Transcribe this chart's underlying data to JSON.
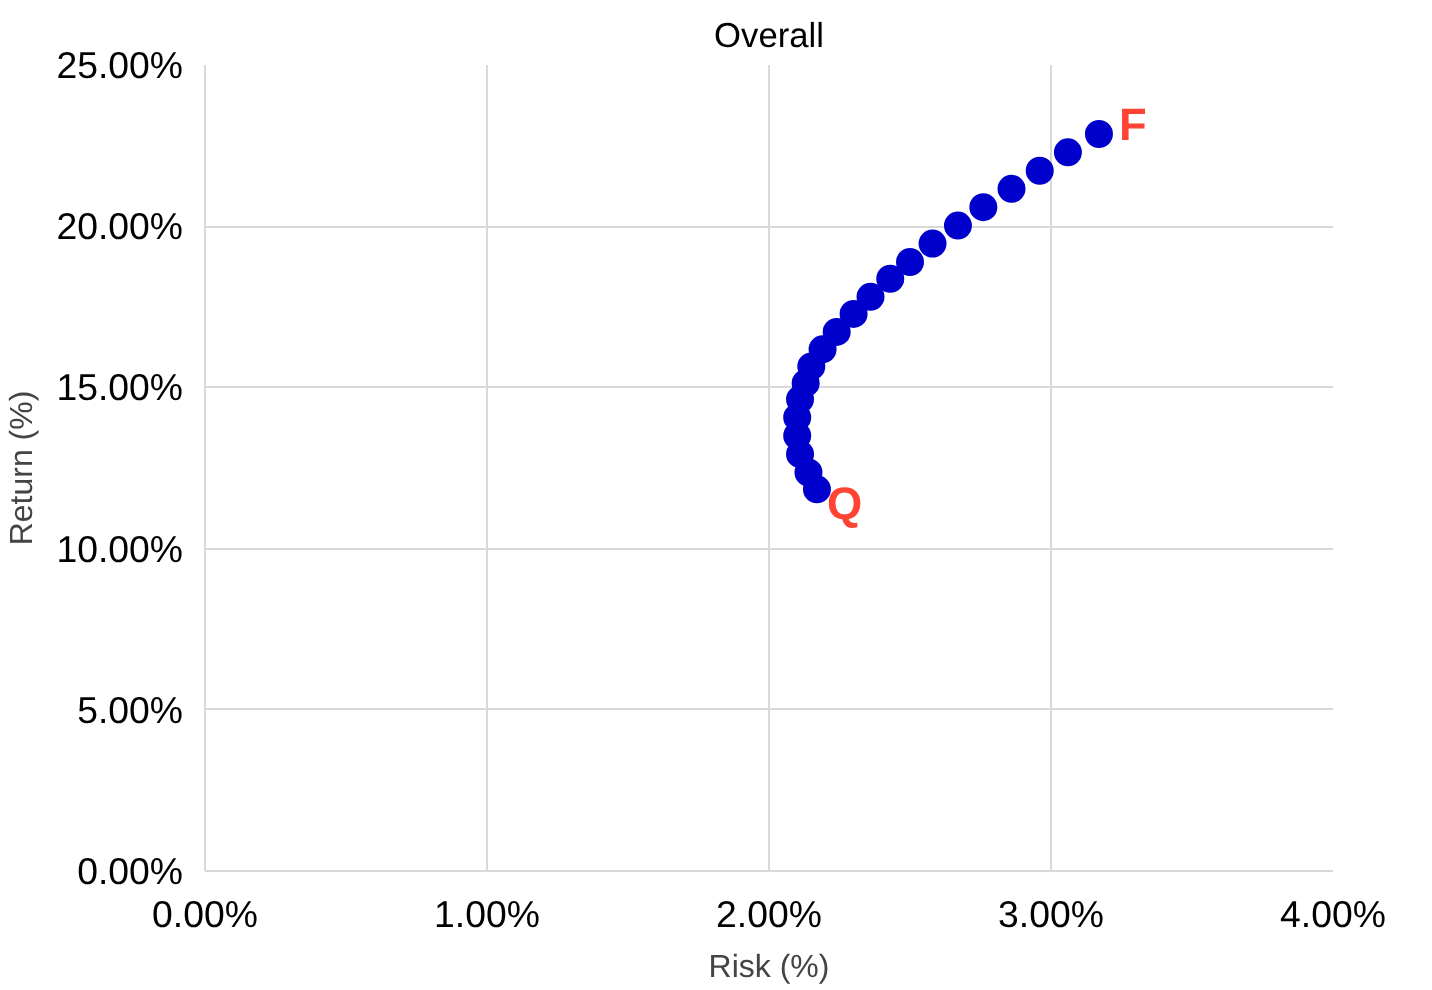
{
  "chart_data": {
    "type": "scatter",
    "title": "Overall",
    "xlabel": "Risk (%)",
    "ylabel": "Return (%)",
    "x": [
      2.17,
      2.14,
      2.11,
      2.1,
      2.1,
      2.11,
      2.13,
      2.15,
      2.19,
      2.24,
      2.3,
      2.36,
      2.43,
      2.5,
      2.58,
      2.67,
      2.76,
      2.86,
      2.96,
      3.06,
      3.17
    ],
    "series": [
      {
        "color": "#0000cc",
        "values": [
          11.84,
          12.36,
          12.93,
          13.5,
          14.07,
          14.63,
          15.13,
          15.65,
          16.18,
          16.72,
          17.28,
          17.81,
          18.37,
          18.89,
          19.46,
          20.02,
          20.59,
          21.16,
          21.72,
          22.29,
          22.86
        ]
      }
    ],
    "xlim": [
      0,
      4
    ],
    "ylim": [
      0,
      25
    ],
    "xticks": [
      {
        "value": 0,
        "label": "0.00%"
      },
      {
        "value": 1,
        "label": "1.00%"
      },
      {
        "value": 2,
        "label": "2.00%"
      },
      {
        "value": 3,
        "label": "3.00%"
      },
      {
        "value": 4,
        "label": "4.00%"
      }
    ],
    "yticks": [
      {
        "value": 0,
        "label": "0.00%"
      },
      {
        "value": 5,
        "label": "5.00%"
      },
      {
        "value": 10,
        "label": "10.00%"
      },
      {
        "value": 15,
        "label": "15.00%"
      },
      {
        "value": 20,
        "label": "20.00%"
      },
      {
        "value": 25,
        "label": "25.00%"
      }
    ],
    "annotations": [
      {
        "text": "Q",
        "x": 2.17,
        "y": 11.84
      },
      {
        "text": "F",
        "x": 3.17,
        "y": 22.86
      }
    ],
    "grid": true,
    "marker": "circle"
  }
}
